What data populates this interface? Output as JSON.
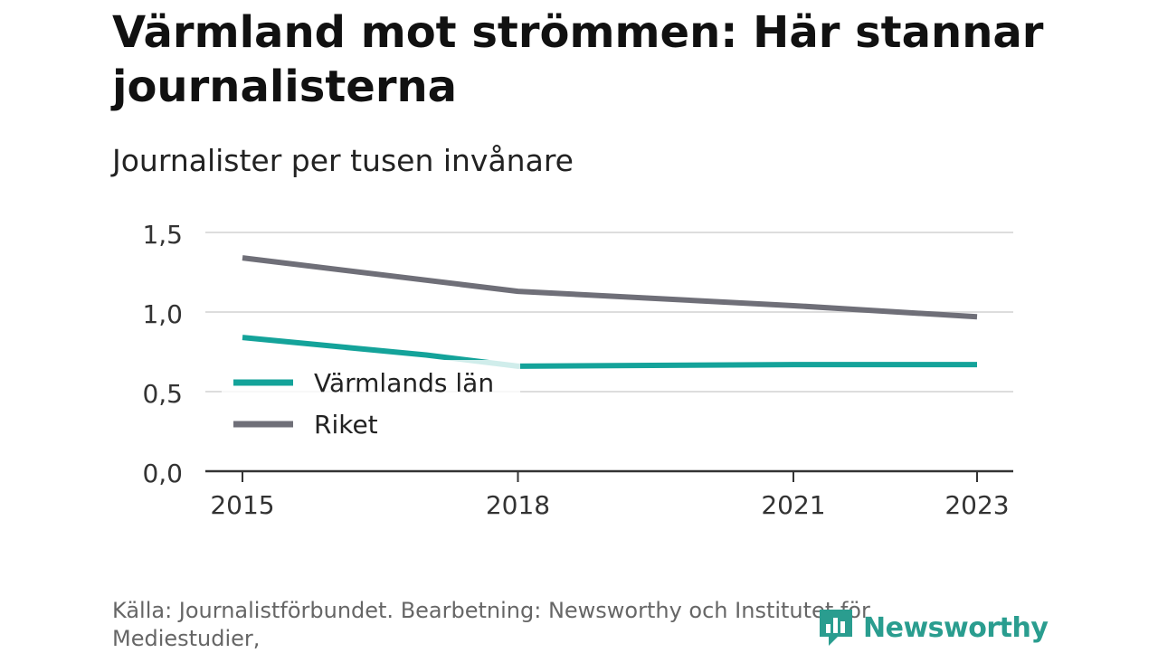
{
  "title": "Värmland mot strömmen: Här stannar journalisterna",
  "subtitle": "Journalister per tusen invånare",
  "source": "Källa: Journalistförbundet. Bearbetning: Newsworthy och Institutet för Mediestudier,",
  "logo": {
    "text": "Newsworthy",
    "icon": "newsworthy-logo-icon"
  },
  "colors": {
    "varmland": "#14a39a",
    "riket": "#6f6f78",
    "grid": "#dddddd",
    "axis": "#333333"
  },
  "chart_data": {
    "type": "line",
    "x": [
      2015,
      2017,
      2018,
      2021,
      2023
    ],
    "xticks": [
      "2015",
      "2018",
      "2021",
      "2023"
    ],
    "xtick_values": [
      2015,
      2018,
      2021,
      2023
    ],
    "yticks": [
      "0,0",
      "0,5",
      "1,0",
      "1,5"
    ],
    "ytick_values": [
      0,
      0.5,
      1.0,
      1.5
    ],
    "ylim": [
      0,
      1.5
    ],
    "xlim": [
      2015,
      2023
    ],
    "grid": true,
    "legend": "inside-bottom-left",
    "series": [
      {
        "name": "Värmlands län",
        "x": [
          2015,
          2017,
          2018,
          2021,
          2023
        ],
        "values": [
          0.84,
          0.73,
          0.66,
          0.67,
          0.67
        ],
        "color": "#14a39a"
      },
      {
        "name": "Riket",
        "x": [
          2015,
          2018,
          2021,
          2023
        ],
        "values": [
          1.34,
          1.13,
          1.04,
          0.97
        ],
        "color": "#6f6f78"
      }
    ]
  }
}
